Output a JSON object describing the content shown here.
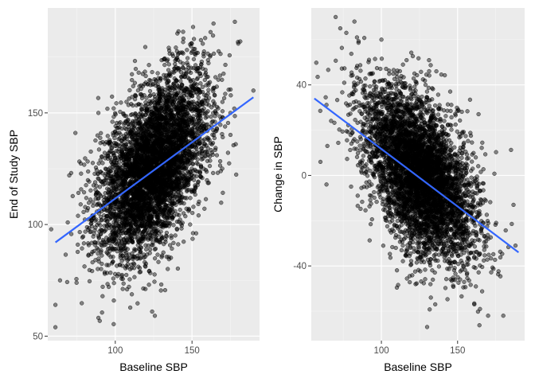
{
  "colors": {
    "panel_background": "#EBEBEB",
    "grid_major": "#FFFFFF",
    "grid_minor": "#F5F5F5",
    "points": "#000000",
    "fit_line": "#3366FF",
    "tick_text": "#4D4D4D"
  },
  "chart_data": [
    {
      "type": "scatter",
      "title": "",
      "xlabel": "Baseline SBP",
      "ylabel": "End of Study SBP",
      "xlim": [
        56,
        194
      ],
      "ylim": [
        48,
        197
      ],
      "x_ticks": [
        100,
        150
      ],
      "x_tick_labels": [
        "100",
        "150"
      ],
      "y_ticks": [
        50,
        100,
        150
      ],
      "y_tick_labels": [
        "50",
        "100",
        "150"
      ],
      "grid": true,
      "point_cloud": {
        "n": 5000,
        "x_mean": 125,
        "x_sd": 18,
        "y_mean": 126,
        "y_sd": 20,
        "correlation": 0.5
      },
      "outliers": [
        [
          61,
          54
        ],
        [
          61,
          64
        ],
        [
          64,
          75
        ],
        [
          70,
          122
        ],
        [
          74,
          141
        ],
        [
          89,
          150
        ],
        [
          113,
          158
        ],
        [
          124,
          61
        ],
        [
          157,
          181
        ],
        [
          164,
          190
        ],
        [
          190,
          160
        ],
        [
          175,
          150
        ]
      ],
      "fit_line": {
        "x": [
          61,
          190
        ],
        "y": [
          92,
          157
        ]
      }
    },
    {
      "type": "scatter",
      "title": "",
      "xlabel": "Baseline SBP",
      "ylabel": "Change in SBP",
      "xlim": [
        54,
        194
      ],
      "ylim": [
        -73,
        74
      ],
      "x_ticks": [
        100,
        150
      ],
      "x_tick_labels": [
        "100",
        "150"
      ],
      "y_ticks": [
        -40,
        0,
        40
      ],
      "y_tick_labels": [
        "-40",
        "0",
        "40"
      ],
      "grid": true,
      "point_cloud": {
        "n": 5000,
        "x_mean": 125,
        "x_sd": 18,
        "y_mean": 1,
        "y_sd": 19,
        "correlation": -0.5
      },
      "outliers": [
        [
          64,
          -4
        ],
        [
          60,
          6
        ],
        [
          70,
          70
        ],
        [
          73,
          65
        ],
        [
          77,
          63
        ],
        [
          84,
          61
        ],
        [
          82,
          39
        ],
        [
          100,
          60
        ],
        [
          130,
          -67
        ],
        [
          170,
          -62
        ],
        [
          180,
          -62
        ],
        [
          188,
          -31
        ],
        [
          161,
          -57
        ]
      ],
      "fit_line": {
        "x": [
          56,
          190
        ],
        "y": [
          34,
          -34
        ]
      }
    }
  ]
}
